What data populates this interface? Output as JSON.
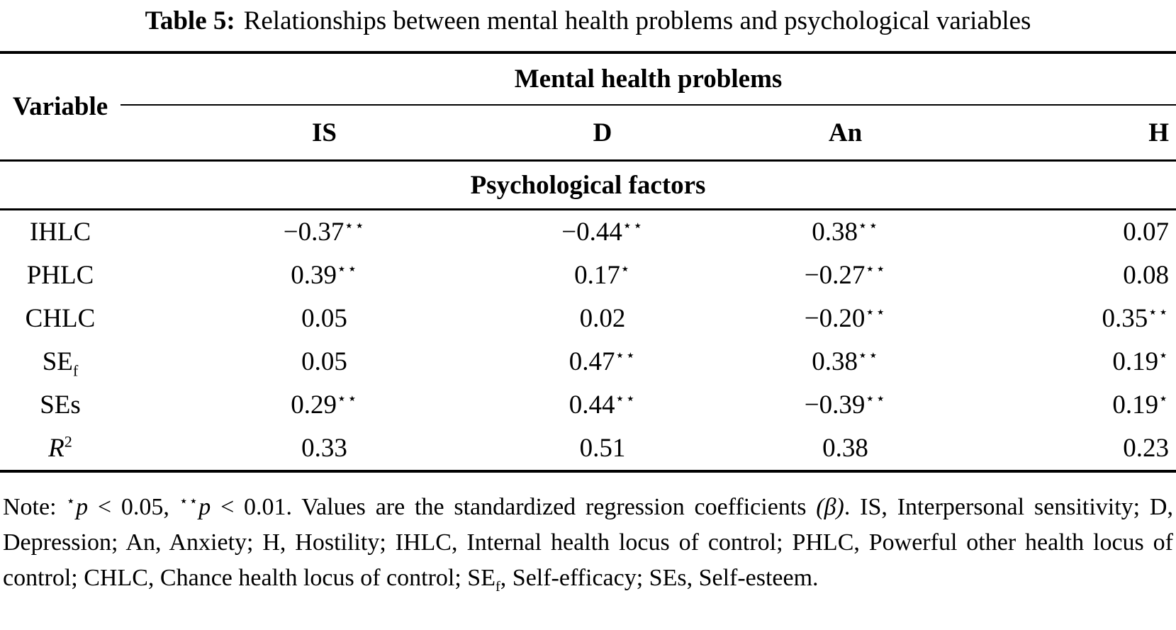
{
  "page": {
    "background": "#ffffff",
    "text_color": "#000000",
    "rule_color": "#000000"
  },
  "title": {
    "label": "Table 5:",
    "text": "Relationships between mental health problems and psychological variables"
  },
  "table": {
    "corner_header": "Variable",
    "group_header": "Mental health problems",
    "columns": [
      "IS",
      "D",
      "An",
      "H"
    ],
    "section_header": "Psychological factors",
    "star_glyph": "⋆",
    "rows": [
      {
        "label": {
          "text": "IHLC"
        },
        "values": [
          {
            "text": "−0.37",
            "stars": 2
          },
          {
            "text": "−0.44",
            "stars": 2
          },
          {
            "text": "0.38",
            "stars": 2
          },
          {
            "text": "0.07",
            "stars": 0
          }
        ]
      },
      {
        "label": {
          "text": "PHLC"
        },
        "values": [
          {
            "text": "0.39",
            "stars": 2
          },
          {
            "text": "0.17",
            "stars": 1
          },
          {
            "text": "−0.27",
            "stars": 2
          },
          {
            "text": "0.08",
            "stars": 0
          }
        ]
      },
      {
        "label": {
          "text": "CHLC"
        },
        "values": [
          {
            "text": "0.05",
            "stars": 0
          },
          {
            "text": "0.02",
            "stars": 0
          },
          {
            "text": "−0.20",
            "stars": 2
          },
          {
            "text": "0.35",
            "stars": 2
          }
        ]
      },
      {
        "label": {
          "text": "SE",
          "sub": "f"
        },
        "values": [
          {
            "text": "0.05",
            "stars": 0
          },
          {
            "text": "0.47",
            "stars": 2
          },
          {
            "text": "0.38",
            "stars": 2
          },
          {
            "text": "0.19",
            "stars": 1
          }
        ]
      },
      {
        "label": {
          "text": "SEs"
        },
        "values": [
          {
            "text": "0.29",
            "stars": 2
          },
          {
            "text": "0.44",
            "stars": 2
          },
          {
            "text": "−0.39",
            "stars": 2
          },
          {
            "text": "0.19",
            "stars": 1
          }
        ]
      },
      {
        "label": {
          "text": "R",
          "sup": "2",
          "italic": true
        },
        "values": [
          {
            "text": "0.33",
            "stars": 0
          },
          {
            "text": "0.51",
            "stars": 0
          },
          {
            "text": "0.38",
            "stars": 0
          },
          {
            "text": "0.23",
            "stars": 0
          }
        ]
      }
    ]
  },
  "note": {
    "segments": [
      {
        "text": "Note: "
      },
      {
        "stars": 1
      },
      {
        "text": "p",
        "italic": true
      },
      {
        "text": " < 0.05, "
      },
      {
        "stars": 2
      },
      {
        "text": "p",
        "italic": true
      },
      {
        "text": " < 0.01. Values are the standardized regression coefficients "
      },
      {
        "text": "(β)",
        "italic": true
      },
      {
        "text": ". IS, Interpersonal sensitivity; D, Depression; An, Anxiety; H, Hostility; IHLC, Internal health locus of control; PHLC, Powerful other health locus of control; CHLC, Chance health locus of control; SE"
      },
      {
        "text": "f",
        "sub": true
      },
      {
        "text": ", Self-efficacy; SEs, Self-esteem."
      }
    ]
  }
}
